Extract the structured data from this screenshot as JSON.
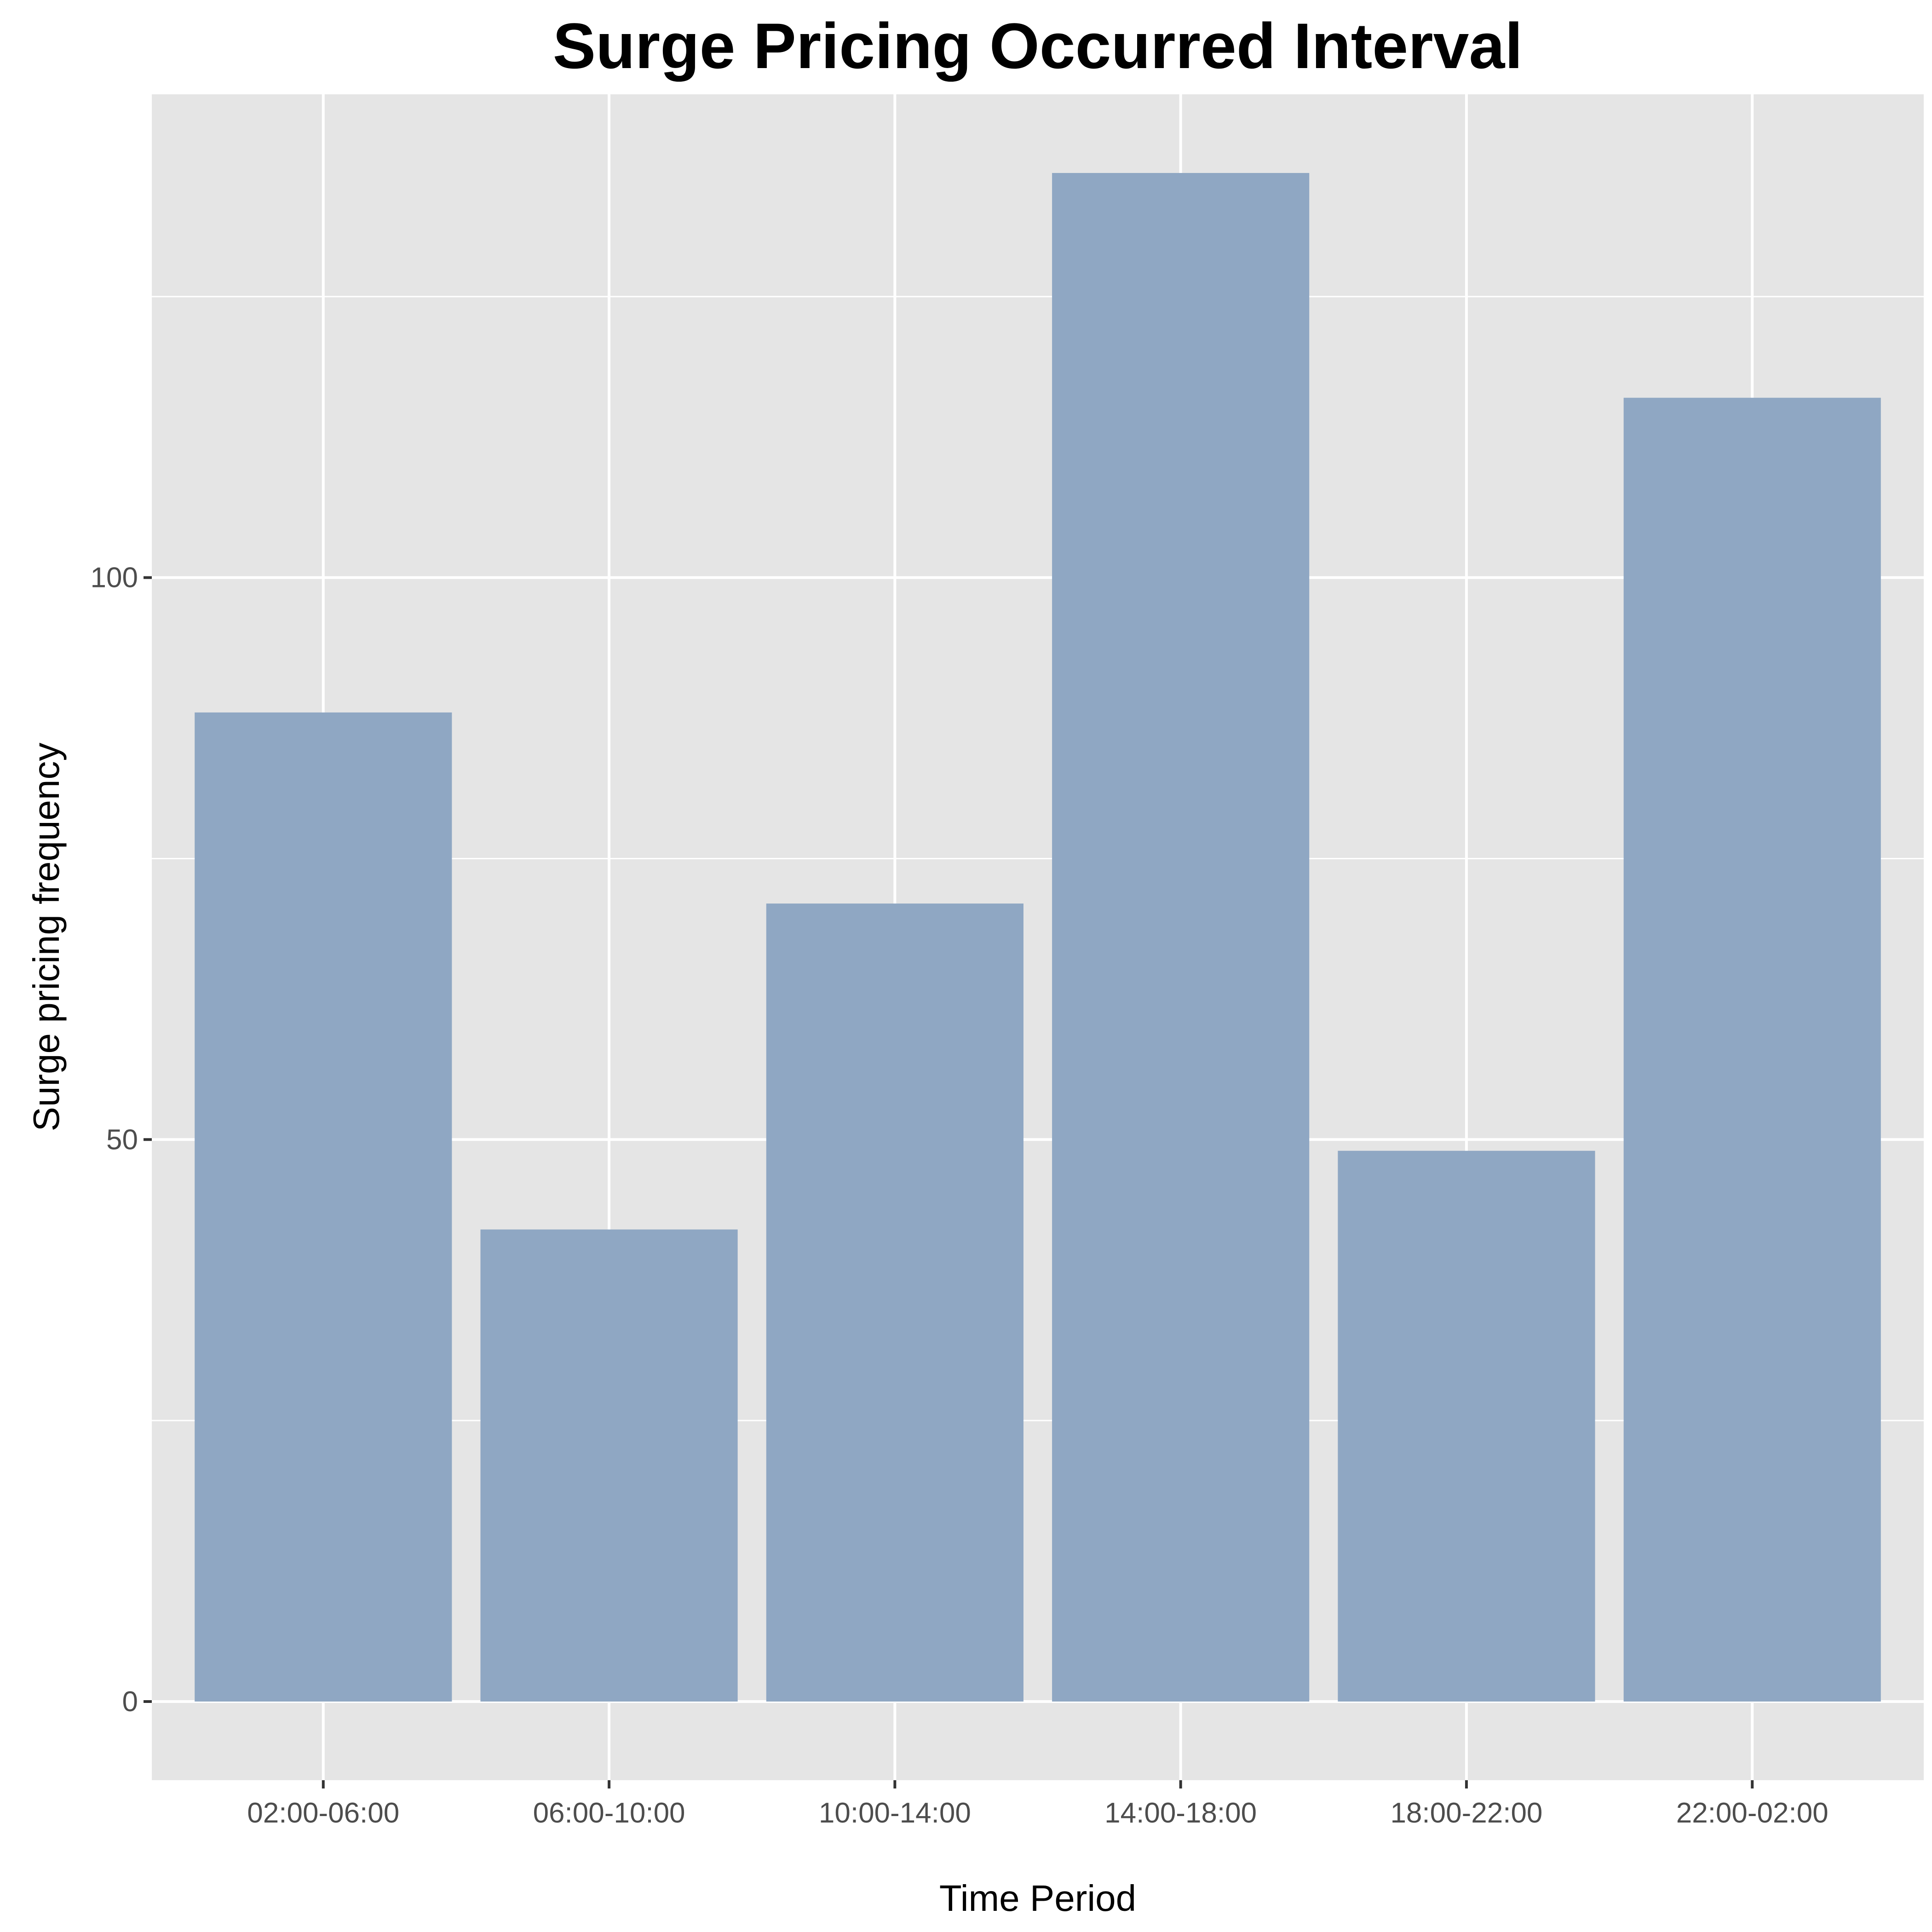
{
  "chart_data": {
    "type": "bar",
    "title": "Surge Pricing Occurred Interval",
    "xlabel": "Time Period",
    "ylabel": "Surge pricing frequency",
    "categories": [
      "02:00-06:00",
      "06:00-10:00",
      "10:00-14:00",
      "14:00-18:00",
      "18:00-22:00",
      "22:00-02:00"
    ],
    "values": [
      88,
      42,
      71,
      136,
      49,
      116
    ],
    "ylim": [
      -7,
      143
    ],
    "y_ticks": [
      0,
      50,
      100
    ],
    "y_minor_ticks": [
      25,
      75,
      125
    ],
    "grid": true,
    "legend": "none",
    "colors": {
      "bar": "#8fa7c3",
      "panel": "#e5e5e5",
      "grid": "#ffffff",
      "tick": "#333333"
    }
  }
}
